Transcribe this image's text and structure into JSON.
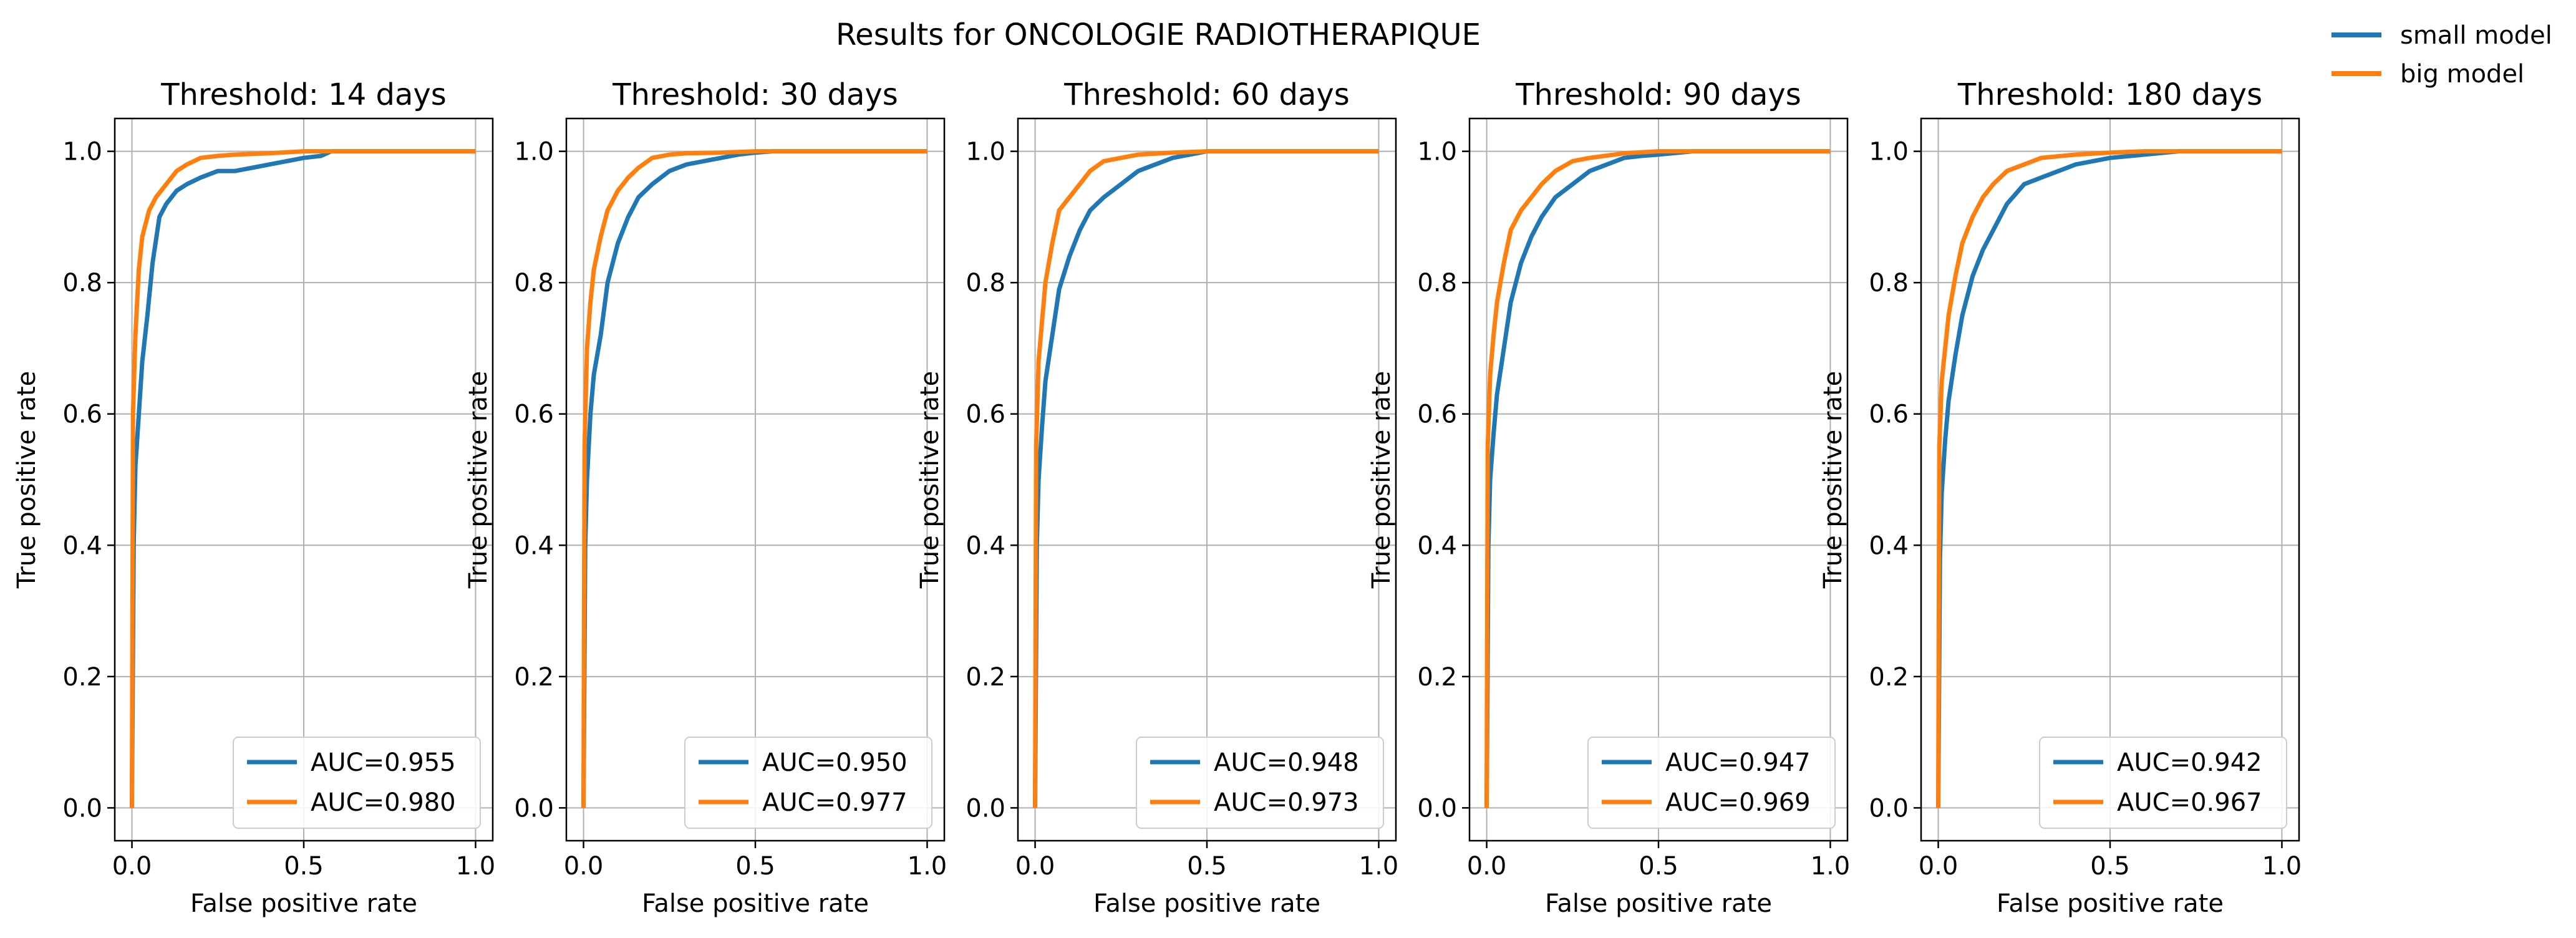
{
  "figure": {
    "title": "Results for ONCOLOGIE RADIOTHERAPIQUE",
    "legend": [
      {
        "label": "small model",
        "color": "#1f77b4"
      },
      {
        "label": "big model",
        "color": "#ff7f0e"
      }
    ]
  },
  "chart_data": [
    {
      "type": "line",
      "title": "Threshold: 14 days",
      "xlabel": "False positive rate",
      "ylabel": "True positive rate",
      "xlim": [
        -0.05,
        1.05
      ],
      "ylim": [
        -0.05,
        1.05
      ],
      "xticks": [
        "0.0",
        "0.5",
        "1.0"
      ],
      "yticks": [
        "0.0",
        "0.2",
        "0.4",
        "0.6",
        "0.8",
        "1.0"
      ],
      "grid": true,
      "legend_position": "lower-right",
      "series": [
        {
          "name": "AUC=0.955",
          "color": "#1f77b4",
          "x": [
            0,
            0.005,
            0.01,
            0.02,
            0.03,
            0.045,
            0.06,
            0.08,
            0.1,
            0.13,
            0.16,
            0.2,
            0.25,
            0.3,
            0.35,
            0.4,
            0.45,
            0.5,
            0.55,
            0.58,
            0.6,
            0.8,
            1.0
          ],
          "y": [
            0,
            0.4,
            0.52,
            0.6,
            0.68,
            0.75,
            0.83,
            0.9,
            0.92,
            0.94,
            0.95,
            0.96,
            0.97,
            0.97,
            0.975,
            0.98,
            0.985,
            0.99,
            0.993,
            1.0,
            1.0,
            1.0,
            1.0
          ]
        },
        {
          "name": "AUC=0.980",
          "color": "#ff7f0e",
          "x": [
            0,
            0.003,
            0.01,
            0.02,
            0.03,
            0.05,
            0.07,
            0.1,
            0.13,
            0.16,
            0.2,
            0.25,
            0.3,
            0.4,
            0.5,
            0.6,
            0.8,
            1.0
          ],
          "y": [
            0,
            0.6,
            0.72,
            0.82,
            0.87,
            0.91,
            0.93,
            0.95,
            0.97,
            0.98,
            0.99,
            0.993,
            0.995,
            0.997,
            1.0,
            1.0,
            1.0,
            1.0
          ]
        }
      ]
    },
    {
      "type": "line",
      "title": "Threshold: 30 days",
      "xlabel": "False positive rate",
      "ylabel": "True positive rate",
      "xlim": [
        -0.05,
        1.05
      ],
      "ylim": [
        -0.05,
        1.05
      ],
      "xticks": [
        "0.0",
        "0.5",
        "1.0"
      ],
      "yticks": [
        "0.0",
        "0.2",
        "0.4",
        "0.6",
        "0.8",
        "1.0"
      ],
      "grid": true,
      "legend_position": "lower-right",
      "series": [
        {
          "name": "AUC=0.950",
          "color": "#1f77b4",
          "x": [
            0,
            0.005,
            0.01,
            0.02,
            0.03,
            0.05,
            0.07,
            0.1,
            0.13,
            0.16,
            0.2,
            0.25,
            0.3,
            0.35,
            0.4,
            0.45,
            0.5,
            0.55,
            0.6,
            0.8,
            1.0
          ],
          "y": [
            0,
            0.4,
            0.5,
            0.6,
            0.66,
            0.72,
            0.8,
            0.86,
            0.9,
            0.93,
            0.95,
            0.97,
            0.98,
            0.985,
            0.99,
            0.995,
            0.998,
            1.0,
            1.0,
            1.0,
            1.0
          ]
        },
        {
          "name": "AUC=0.977",
          "color": "#ff7f0e",
          "x": [
            0,
            0.003,
            0.01,
            0.02,
            0.03,
            0.05,
            0.07,
            0.1,
            0.13,
            0.16,
            0.2,
            0.25,
            0.3,
            0.4,
            0.5,
            0.6,
            0.8,
            1.0
          ],
          "y": [
            0,
            0.55,
            0.7,
            0.77,
            0.82,
            0.87,
            0.91,
            0.94,
            0.96,
            0.975,
            0.99,
            0.995,
            0.997,
            0.998,
            1.0,
            1.0,
            1.0,
            1.0
          ]
        }
      ]
    },
    {
      "type": "line",
      "title": "Threshold: 60 days",
      "xlabel": "False positive rate",
      "ylabel": "True positive rate",
      "xlim": [
        -0.05,
        1.05
      ],
      "ylim": [
        -0.05,
        1.05
      ],
      "xticks": [
        "0.0",
        "0.5",
        "1.0"
      ],
      "yticks": [
        "0.0",
        "0.2",
        "0.4",
        "0.6",
        "0.8",
        "1.0"
      ],
      "grid": true,
      "legend_position": "lower-right",
      "series": [
        {
          "name": "AUC=0.948",
          "color": "#1f77b4",
          "x": [
            0,
            0.005,
            0.01,
            0.02,
            0.03,
            0.05,
            0.07,
            0.1,
            0.13,
            0.16,
            0.2,
            0.25,
            0.3,
            0.35,
            0.4,
            0.45,
            0.5,
            0.6,
            0.8,
            1.0
          ],
          "y": [
            0,
            0.4,
            0.5,
            0.58,
            0.65,
            0.72,
            0.79,
            0.84,
            0.88,
            0.91,
            0.93,
            0.95,
            0.97,
            0.98,
            0.99,
            0.995,
            1.0,
            1.0,
            1.0,
            1.0
          ]
        },
        {
          "name": "AUC=0.973",
          "color": "#ff7f0e",
          "x": [
            0,
            0.003,
            0.01,
            0.02,
            0.03,
            0.05,
            0.07,
            0.1,
            0.13,
            0.16,
            0.2,
            0.25,
            0.3,
            0.4,
            0.5,
            0.6,
            0.8,
            1.0
          ],
          "y": [
            0,
            0.55,
            0.68,
            0.74,
            0.8,
            0.86,
            0.91,
            0.93,
            0.95,
            0.97,
            0.985,
            0.99,
            0.995,
            0.998,
            1.0,
            1.0,
            1.0,
            1.0
          ]
        }
      ]
    },
    {
      "type": "line",
      "title": "Threshold: 90 days",
      "xlabel": "False positive rate",
      "ylabel": "True positive rate",
      "xlim": [
        -0.05,
        1.05
      ],
      "ylim": [
        -0.05,
        1.05
      ],
      "xticks": [
        "0.0",
        "0.5",
        "1.0"
      ],
      "yticks": [
        "0.0",
        "0.2",
        "0.4",
        "0.6",
        "0.8",
        "1.0"
      ],
      "grid": true,
      "legend_position": "lower-right",
      "series": [
        {
          "name": "AUC=0.947",
          "color": "#1f77b4",
          "x": [
            0,
            0.005,
            0.01,
            0.02,
            0.03,
            0.05,
            0.07,
            0.1,
            0.13,
            0.16,
            0.2,
            0.25,
            0.3,
            0.35,
            0.4,
            0.45,
            0.5,
            0.6,
            0.8,
            1.0
          ],
          "y": [
            0,
            0.4,
            0.5,
            0.57,
            0.63,
            0.7,
            0.77,
            0.83,
            0.87,
            0.9,
            0.93,
            0.95,
            0.97,
            0.98,
            0.99,
            0.993,
            0.995,
            1.0,
            1.0,
            1.0
          ]
        },
        {
          "name": "AUC=0.969",
          "color": "#ff7f0e",
          "x": [
            0,
            0.003,
            0.01,
            0.02,
            0.03,
            0.05,
            0.07,
            0.1,
            0.13,
            0.16,
            0.2,
            0.25,
            0.3,
            0.4,
            0.5,
            0.6,
            0.8,
            1.0
          ],
          "y": [
            0,
            0.55,
            0.66,
            0.72,
            0.77,
            0.83,
            0.88,
            0.91,
            0.93,
            0.95,
            0.97,
            0.985,
            0.99,
            0.997,
            1.0,
            1.0,
            1.0,
            1.0
          ]
        }
      ]
    },
    {
      "type": "line",
      "title": "Threshold: 180 days",
      "xlabel": "False positive rate",
      "ylabel": "True positive rate",
      "xlim": [
        -0.05,
        1.05
      ],
      "ylim": [
        -0.05,
        1.05
      ],
      "xticks": [
        "0.0",
        "0.5",
        "1.0"
      ],
      "yticks": [
        "0.0",
        "0.2",
        "0.4",
        "0.6",
        "0.8",
        "1.0"
      ],
      "grid": true,
      "legend_position": "lower-right",
      "series": [
        {
          "name": "AUC=0.942",
          "color": "#1f77b4",
          "x": [
            0,
            0.005,
            0.01,
            0.02,
            0.03,
            0.05,
            0.07,
            0.1,
            0.13,
            0.16,
            0.2,
            0.25,
            0.3,
            0.35,
            0.4,
            0.45,
            0.5,
            0.6,
            0.7,
            0.8,
            1.0
          ],
          "y": [
            0,
            0.38,
            0.48,
            0.56,
            0.62,
            0.69,
            0.75,
            0.81,
            0.85,
            0.88,
            0.92,
            0.95,
            0.96,
            0.97,
            0.98,
            0.985,
            0.99,
            0.995,
            1.0,
            1.0,
            1.0
          ]
        },
        {
          "name": "AUC=0.967",
          "color": "#ff7f0e",
          "x": [
            0,
            0.003,
            0.01,
            0.02,
            0.03,
            0.05,
            0.07,
            0.1,
            0.13,
            0.16,
            0.2,
            0.25,
            0.3,
            0.4,
            0.5,
            0.6,
            0.8,
            1.0
          ],
          "y": [
            0,
            0.55,
            0.65,
            0.7,
            0.75,
            0.81,
            0.86,
            0.9,
            0.93,
            0.95,
            0.97,
            0.98,
            0.99,
            0.995,
            0.998,
            1.0,
            1.0,
            1.0
          ]
        }
      ]
    }
  ]
}
